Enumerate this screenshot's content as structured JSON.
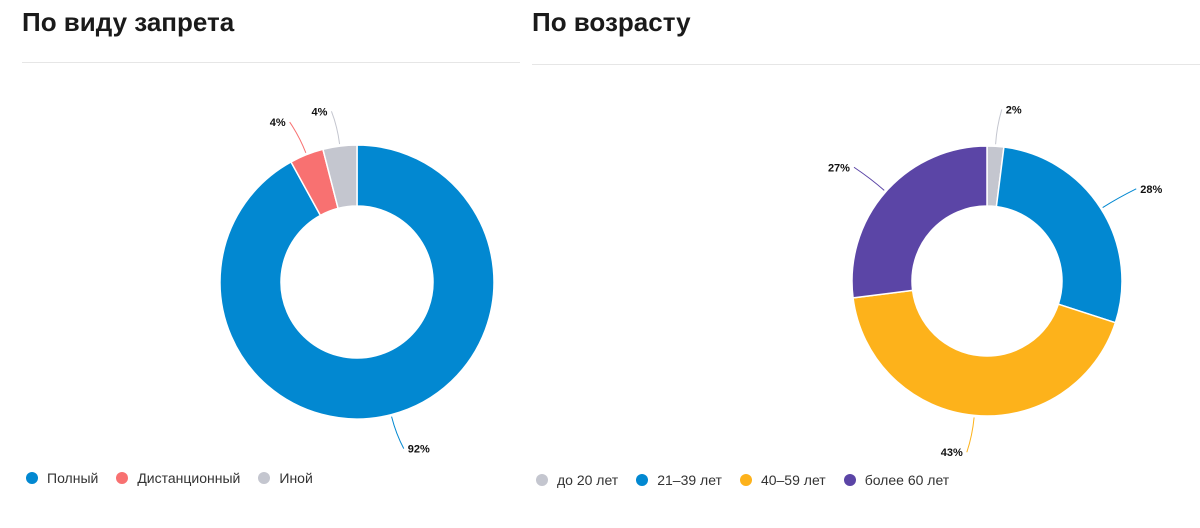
{
  "chart_data": [
    {
      "type": "pie",
      "title": "По виду запрета",
      "categories": [
        "Полный",
        "Дистанционный",
        "Иной"
      ],
      "values": [
        92,
        4,
        4
      ],
      "labels": [
        "92%",
        "4%",
        "4%"
      ],
      "colors": [
        "#0288d1",
        "#f87171",
        "#c4c6cf"
      ],
      "donut": true,
      "legend": "bottom-left"
    },
    {
      "type": "pie",
      "title": "По возрасту",
      "categories": [
        "до 20 лет",
        "21–39 лет",
        "40–59 лет",
        "более 60 лет"
      ],
      "values": [
        2,
        28,
        43,
        27
      ],
      "labels": [
        "2%",
        "28%",
        "43%",
        "27%"
      ],
      "colors": [
        "#c4c6cf",
        "#0288d1",
        "#fdb21b",
        "#5b45a6"
      ],
      "donut": true,
      "legend": "bottom-left"
    }
  ]
}
